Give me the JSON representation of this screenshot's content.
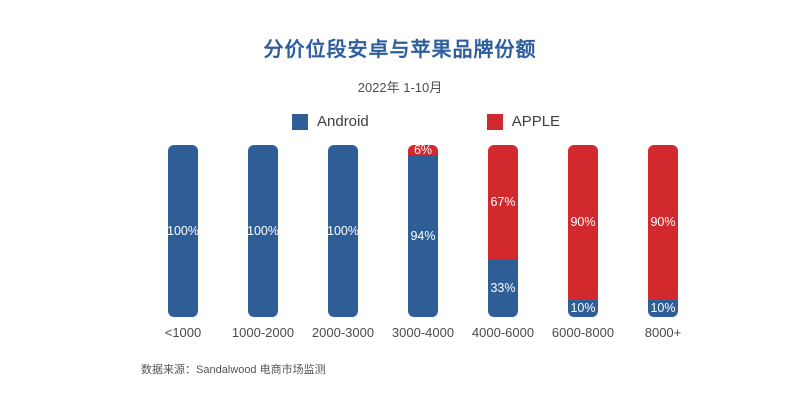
{
  "chart_data": {
    "type": "bar",
    "stacked": true,
    "title": "分价位段安卓与苹果品牌份额",
    "subtitle": "2022年 1-10月",
    "categories": [
      "<1000",
      "1000-2000",
      "2000-3000",
      "3000-4000",
      "4000-6000",
      "6000-8000",
      "8000+"
    ],
    "series": [
      {
        "name": "Android",
        "color": "#2E5E95",
        "values": [
          100,
          100,
          100,
          94,
          33,
          10,
          10
        ]
      },
      {
        "name": "APPLE",
        "color": "#D2292F",
        "values": [
          0,
          0,
          0,
          6,
          67,
          90,
          90
        ]
      }
    ],
    "value_suffix": "%",
    "ylim": [
      0,
      100
    ],
    "grid": false,
    "legend_position": "top",
    "source": "数据来源：Sandalwood 电商市场监测"
  },
  "colors": {
    "title": "#2d5f9f",
    "android": "#2E5E95",
    "apple": "#D2292F",
    "background": "#ffffff"
  }
}
